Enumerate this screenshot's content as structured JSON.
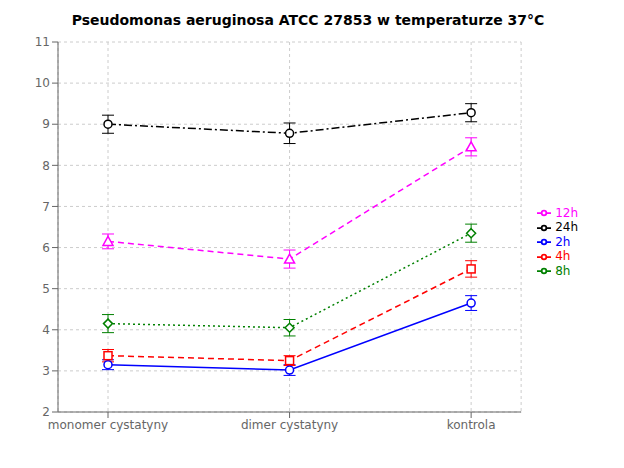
{
  "chart_data": {
    "type": "line",
    "title": "Pseudomonas aeruginosa ATCC 27853 w temperaturze 37°C",
    "categories": [
      "monomer cystatyny",
      "dimer cystatyny",
      "kontrola"
    ],
    "series": [
      {
        "name": "2h",
        "color": "#0000FF",
        "line_style": "solid",
        "marker": "circle",
        "values": [
          3.15,
          3.02,
          4.65
        ],
        "errors": [
          0.12,
          0.13,
          0.18
        ]
      },
      {
        "name": "4h",
        "color": "#FF0000",
        "line_style": "dashed",
        "marker": "square",
        "values": [
          3.37,
          3.25,
          5.48
        ],
        "errors": [
          0.15,
          0.12,
          0.2
        ]
      },
      {
        "name": "8h",
        "color": "#008000",
        "line_style": "dotted",
        "marker": "diamond",
        "values": [
          4.15,
          4.05,
          6.35
        ],
        "errors": [
          0.22,
          0.2,
          0.22
        ]
      },
      {
        "name": "12h",
        "color": "#FF00FF",
        "line_style": "dashed",
        "marker": "triangle",
        "values": [
          6.15,
          5.72,
          8.45
        ],
        "errors": [
          0.18,
          0.22,
          0.22
        ]
      },
      {
        "name": "24h",
        "color": "#000000",
        "line_style": "dashdot",
        "marker": "circle",
        "values": [
          9.0,
          8.78,
          9.28
        ],
        "errors": [
          0.22,
          0.25,
          0.22
        ]
      }
    ],
    "ylim": [
      2,
      11
    ],
    "yticks": [
      2,
      3,
      4,
      5,
      6,
      7,
      8,
      9,
      10,
      11
    ],
    "grid": true,
    "legend": "right"
  }
}
